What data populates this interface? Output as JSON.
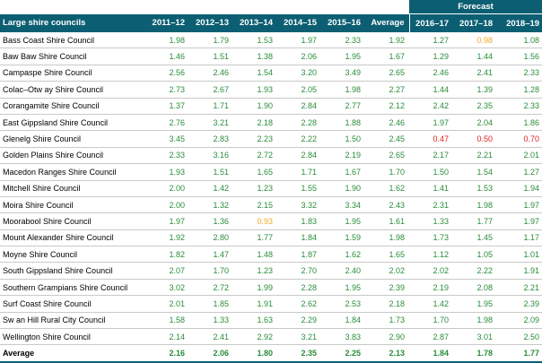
{
  "header": {
    "forecast_label": "Forecast",
    "first_column": "Large shire councils",
    "columns": [
      "2011–12",
      "2012–13",
      "2013–14",
      "2014–15",
      "2015–16",
      "Average",
      "2016–17",
      "2017–18",
      "2018–19"
    ]
  },
  "colors": {
    "header_bg": "#0c5f73",
    "green": "#2a8c3a",
    "orange": "#f5a623",
    "red": "#e02020"
  },
  "rows": [
    {
      "name": "Bass Coast Shire Council",
      "values": [
        "1.98",
        "1.79",
        "1.53",
        "1.97",
        "2.33",
        "1.92",
        "1.27",
        "0.98",
        "1.08"
      ],
      "status": [
        "g",
        "g",
        "g",
        "g",
        "g",
        "g",
        "g",
        "o",
        "g"
      ]
    },
    {
      "name": "Baw  Baw  Shire Council",
      "values": [
        "1.46",
        "1.51",
        "1.38",
        "2.06",
        "1.95",
        "1.67",
        "1.29",
        "1.44",
        "1.56"
      ],
      "status": [
        "g",
        "g",
        "g",
        "g",
        "g",
        "g",
        "g",
        "g",
        "g"
      ]
    },
    {
      "name": "Campaspe Shire Council",
      "values": [
        "2.56",
        "2.46",
        "1.54",
        "3.20",
        "3.49",
        "2.65",
        "2.46",
        "2.41",
        "2.33"
      ],
      "status": [
        "g",
        "g",
        "g",
        "g",
        "g",
        "g",
        "g",
        "g",
        "g"
      ]
    },
    {
      "name": "Colac–Otw ay Shire Council",
      "values": [
        "2.73",
        "2.67",
        "1.93",
        "2.05",
        "1.98",
        "2.27",
        "1.44",
        "1.39",
        "1.28"
      ],
      "status": [
        "g",
        "g",
        "g",
        "g",
        "g",
        "g",
        "g",
        "g",
        "g"
      ]
    },
    {
      "name": "Corangamite Shire Council",
      "values": [
        "1.37",
        "1.71",
        "1.90",
        "2.84",
        "2.77",
        "2.12",
        "2.42",
        "2.35",
        "2.33"
      ],
      "status": [
        "g",
        "g",
        "g",
        "g",
        "g",
        "g",
        "g",
        "g",
        "g"
      ]
    },
    {
      "name": "East Gippsland Shire Council",
      "values": [
        "2.76",
        "3.21",
        "2.18",
        "2.28",
        "1.88",
        "2.46",
        "1.97",
        "2.04",
        "1.86"
      ],
      "status": [
        "g",
        "g",
        "g",
        "g",
        "g",
        "g",
        "g",
        "g",
        "g"
      ]
    },
    {
      "name": "Glenelg Shire Council",
      "values": [
        "3.45",
        "2.83",
        "2.23",
        "2.22",
        "1.50",
        "2.45",
        "0.47",
        "0.50",
        "0.70"
      ],
      "status": [
        "g",
        "g",
        "g",
        "g",
        "g",
        "g",
        "r",
        "r",
        "r"
      ]
    },
    {
      "name": "Golden Plains Shire Council",
      "values": [
        "2.33",
        "3.16",
        "2.72",
        "2.84",
        "2.19",
        "2.65",
        "2.17",
        "2.21",
        "2.01"
      ],
      "status": [
        "g",
        "g",
        "g",
        "g",
        "g",
        "g",
        "g",
        "g",
        "g"
      ]
    },
    {
      "name": "Macedon Ranges Shire Council",
      "values": [
        "1.93",
        "1.51",
        "1.65",
        "1.71",
        "1.67",
        "1.70",
        "1.50",
        "1.54",
        "1.27"
      ],
      "status": [
        "g",
        "g",
        "g",
        "g",
        "g",
        "g",
        "g",
        "g",
        "g"
      ]
    },
    {
      "name": "Mitchell Shire Council",
      "values": [
        "2.00",
        "1.42",
        "1.23",
        "1.55",
        "1.90",
        "1.62",
        "1.41",
        "1.53",
        "1.94"
      ],
      "status": [
        "g",
        "g",
        "g",
        "g",
        "g",
        "g",
        "g",
        "g",
        "g"
      ]
    },
    {
      "name": "Moira Shire Council",
      "values": [
        "2.00",
        "1.32",
        "2.15",
        "3.32",
        "3.34",
        "2.43",
        "2.31",
        "1.98",
        "1.97"
      ],
      "status": [
        "g",
        "g",
        "g",
        "g",
        "g",
        "g",
        "g",
        "g",
        "g"
      ]
    },
    {
      "name": "Moorabool Shire Council",
      "values": [
        "1.97",
        "1.36",
        "0.93",
        "1.83",
        "1.95",
        "1.61",
        "1.33",
        "1.77",
        "1.97"
      ],
      "status": [
        "g",
        "g",
        "o",
        "g",
        "g",
        "g",
        "g",
        "g",
        "g"
      ]
    },
    {
      "name": "Mount Alexander Shire Council",
      "values": [
        "1.92",
        "2.80",
        "1.77",
        "1.84",
        "1.59",
        "1.98",
        "1.73",
        "1.45",
        "1.17"
      ],
      "status": [
        "g",
        "g",
        "g",
        "g",
        "g",
        "g",
        "g",
        "g",
        "g"
      ]
    },
    {
      "name": "Moyne Shire Council",
      "values": [
        "1.82",
        "1.47",
        "1.48",
        "1.87",
        "1.62",
        "1.65",
        "1.12",
        "1.05",
        "1.01"
      ],
      "status": [
        "g",
        "g",
        "g",
        "g",
        "g",
        "g",
        "g",
        "g",
        "g"
      ]
    },
    {
      "name": "South Gippsland Shire Council",
      "values": [
        "2.07",
        "1.70",
        "1.23",
        "2.70",
        "2.40",
        "2.02",
        "2.02",
        "2.22",
        "1.91"
      ],
      "status": [
        "g",
        "g",
        "g",
        "g",
        "g",
        "g",
        "g",
        "g",
        "g"
      ]
    },
    {
      "name": "Southern Grampians Shire Council",
      "values": [
        "3.02",
        "2.72",
        "1.99",
        "2.28",
        "1.95",
        "2.39",
        "2.19",
        "2.08",
        "2.21"
      ],
      "status": [
        "g",
        "g",
        "g",
        "g",
        "g",
        "g",
        "g",
        "g",
        "g"
      ]
    },
    {
      "name": "Surf Coast Shire Council",
      "values": [
        "2.01",
        "1.85",
        "1.91",
        "2.62",
        "2.53",
        "2.18",
        "1.42",
        "1.95",
        "2.39"
      ],
      "status": [
        "g",
        "g",
        "g",
        "g",
        "g",
        "g",
        "g",
        "g",
        "g"
      ]
    },
    {
      "name": "Sw an Hill Rural City Council",
      "values": [
        "1.58",
        "1.33",
        "1.63",
        "2.29",
        "1.84",
        "1.73",
        "1.70",
        "1.98",
        "2.09"
      ],
      "status": [
        "g",
        "g",
        "g",
        "g",
        "g",
        "g",
        "g",
        "g",
        "g"
      ]
    },
    {
      "name": "Wellington Shire Council",
      "values": [
        "2.14",
        "2.41",
        "2.92",
        "3.21",
        "3.83",
        "2.90",
        "2.87",
        "3.01",
        "2.50"
      ],
      "status": [
        "g",
        "g",
        "g",
        "g",
        "g",
        "g",
        "g",
        "g",
        "g"
      ]
    }
  ],
  "average": {
    "name": "Average",
    "values": [
      "2.16",
      "2.06",
      "1.80",
      "2.35",
      "2.25",
      "2.13",
      "1.84",
      "1.78",
      "1.77"
    ],
    "status": [
      "g",
      "g",
      "g",
      "g",
      "g",
      "g",
      "g",
      "g",
      "g"
    ]
  }
}
